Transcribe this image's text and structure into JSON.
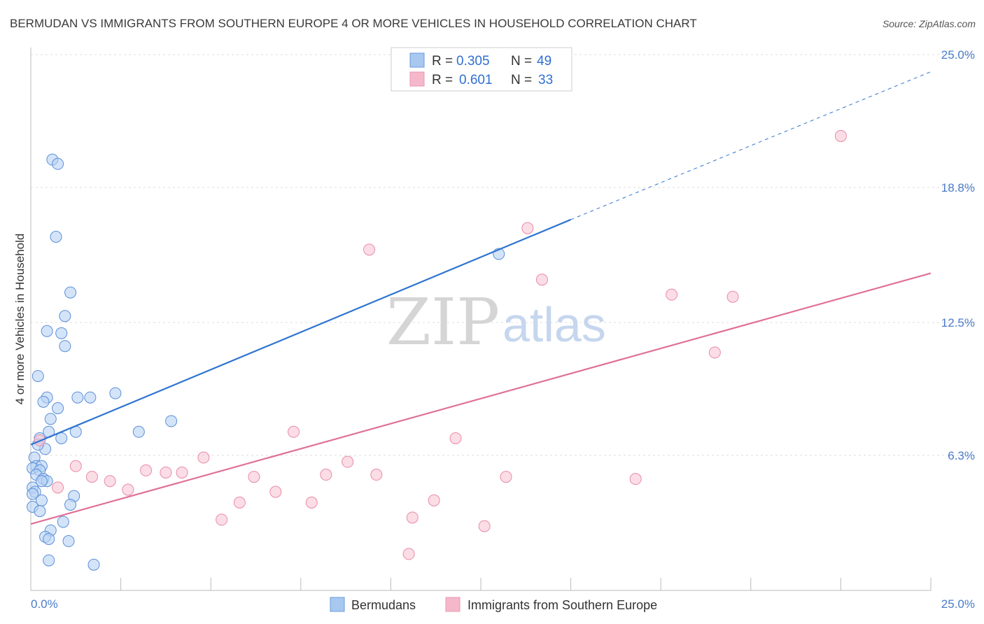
{
  "chart_data": {
    "type": "scatter",
    "title": "BERMUDAN VS IMMIGRANTS FROM SOUTHERN EUROPE 4 OR MORE VEHICLES IN HOUSEHOLD CORRELATION CHART",
    "source": "Source: ZipAtlas.com",
    "xlabel": "",
    "ylabel": "4 or more Vehicles in Household",
    "xlim": [
      0,
      25
    ],
    "ylim": [
      0,
      25
    ],
    "x_tick_labels": [
      "0.0%",
      "25.0%"
    ],
    "y_ticks": [
      6.3,
      12.5,
      18.8,
      25.0
    ],
    "y_tick_labels": [
      "6.3%",
      "12.5%",
      "18.8%",
      "25.0%"
    ],
    "watermark": {
      "zip": "ZIP",
      "atlas": "atlas"
    },
    "legend": [
      {
        "r_label": "R =",
        "r_value": "0.305",
        "n_label": "N =",
        "n_value": "49",
        "color": "#a8c8f0"
      },
      {
        "r_label": "R =",
        "r_value": "0.601",
        "n_label": "N =",
        "n_value": "33",
        "color": "#f5b8cb"
      }
    ],
    "series": [
      {
        "name": "Bermudans",
        "fill": "#b8d2f3",
        "stroke": "#5b8fd8",
        "trend": {
          "color": "#2f74d0",
          "x_start": 0.0,
          "y_start": 6.8,
          "x_solid_end": 15.0,
          "y_solid_end": 17.3,
          "x_dash_end": 25.0,
          "y_dash_end": 24.2
        },
        "points": [
          [
            0.6,
            20.1
          ],
          [
            0.75,
            19.9
          ],
          [
            0.7,
            16.5
          ],
          [
            1.1,
            13.9
          ],
          [
            0.95,
            12.8
          ],
          [
            0.45,
            12.1
          ],
          [
            0.85,
            12.0
          ],
          [
            0.95,
            11.4
          ],
          [
            0.2,
            10.0
          ],
          [
            0.45,
            9.0
          ],
          [
            0.35,
            8.8
          ],
          [
            1.3,
            9.0
          ],
          [
            1.65,
            9.0
          ],
          [
            2.35,
            9.2
          ],
          [
            0.75,
            8.5
          ],
          [
            0.55,
            8.0
          ],
          [
            3.9,
            7.9
          ],
          [
            0.5,
            7.4
          ],
          [
            1.25,
            7.4
          ],
          [
            3.0,
            7.4
          ],
          [
            0.85,
            7.1
          ],
          [
            0.25,
            7.1
          ],
          [
            0.4,
            6.6
          ],
          [
            0.1,
            6.2
          ],
          [
            0.15,
            5.8
          ],
          [
            0.3,
            5.8
          ],
          [
            0.05,
            5.7
          ],
          [
            0.25,
            5.6
          ],
          [
            0.15,
            5.4
          ],
          [
            0.35,
            5.2
          ],
          [
            0.45,
            5.1
          ],
          [
            0.3,
            5.1
          ],
          [
            0.05,
            4.8
          ],
          [
            0.12,
            4.6
          ],
          [
            0.05,
            4.5
          ],
          [
            1.2,
            4.4
          ],
          [
            0.3,
            4.2
          ],
          [
            1.1,
            4.0
          ],
          [
            0.05,
            3.9
          ],
          [
            0.25,
            3.7
          ],
          [
            0.9,
            3.2
          ],
          [
            0.55,
            2.8
          ],
          [
            0.4,
            2.5
          ],
          [
            0.5,
            2.4
          ],
          [
            1.05,
            2.3
          ],
          [
            0.5,
            1.4
          ],
          [
            1.75,
            1.2
          ],
          [
            13.0,
            15.7
          ],
          [
            0.2,
            6.8
          ]
        ]
      },
      {
        "name": "Immigrants from Southern Europe",
        "fill": "#f8c6d5",
        "stroke": "#e88aa8",
        "trend": {
          "color": "#e07098",
          "x_start": 0.0,
          "y_start": 3.1,
          "x_end": 25.0,
          "y_end": 14.8
        },
        "points": [
          [
            22.5,
            21.2
          ],
          [
            13.8,
            16.9
          ],
          [
            9.4,
            15.9
          ],
          [
            14.2,
            14.5
          ],
          [
            17.8,
            13.8
          ],
          [
            19.5,
            13.7
          ],
          [
            19.0,
            11.1
          ],
          [
            7.3,
            7.4
          ],
          [
            11.8,
            7.1
          ],
          [
            0.25,
            7.0
          ],
          [
            4.8,
            6.2
          ],
          [
            8.8,
            6.0
          ],
          [
            1.25,
            5.8
          ],
          [
            3.2,
            5.6
          ],
          [
            4.2,
            5.5
          ],
          [
            3.75,
            5.5
          ],
          [
            8.2,
            5.4
          ],
          [
            9.6,
            5.4
          ],
          [
            1.7,
            5.3
          ],
          [
            6.2,
            5.3
          ],
          [
            13.2,
            5.3
          ],
          [
            16.8,
            5.2
          ],
          [
            2.2,
            5.1
          ],
          [
            2.7,
            4.7
          ],
          [
            0.75,
            4.8
          ],
          [
            6.8,
            4.6
          ],
          [
            5.8,
            4.1
          ],
          [
            7.8,
            4.1
          ],
          [
            11.2,
            4.2
          ],
          [
            5.3,
            3.3
          ],
          [
            10.6,
            3.4
          ],
          [
            12.6,
            3.0
          ],
          [
            10.5,
            1.7
          ]
        ]
      }
    ]
  }
}
